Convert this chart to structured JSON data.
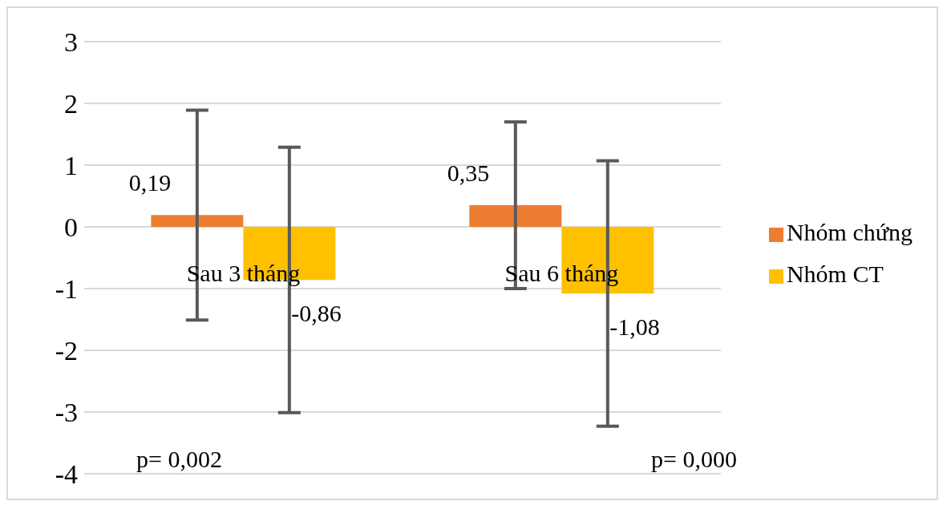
{
  "chart_data": {
    "type": "bar",
    "categories": [
      "Sau 3 tháng",
      "Sau 6 tháng"
    ],
    "series": [
      {
        "name": "Nhóm chứng",
        "color": "#ed7d31",
        "values": [
          0.19,
          0.35
        ],
        "errors": [
          1.7,
          1.35
        ],
        "value_labels": [
          "0,19",
          "0,35"
        ]
      },
      {
        "name": "Nhóm CT",
        "color": "#ffc000",
        "values": [
          -0.86,
          -1.08
        ],
        "errors": [
          2.15,
          2.15
        ],
        "value_labels": [
          "-0,86",
          "-1,08"
        ]
      }
    ],
    "ylim": [
      -4,
      3
    ],
    "yticks": [
      -4,
      -3,
      -2,
      -1,
      0,
      1,
      2,
      3
    ],
    "annotations": [
      "p= 0,002",
      "p= 0,000"
    ],
    "grid": "y",
    "legend": "right"
  }
}
